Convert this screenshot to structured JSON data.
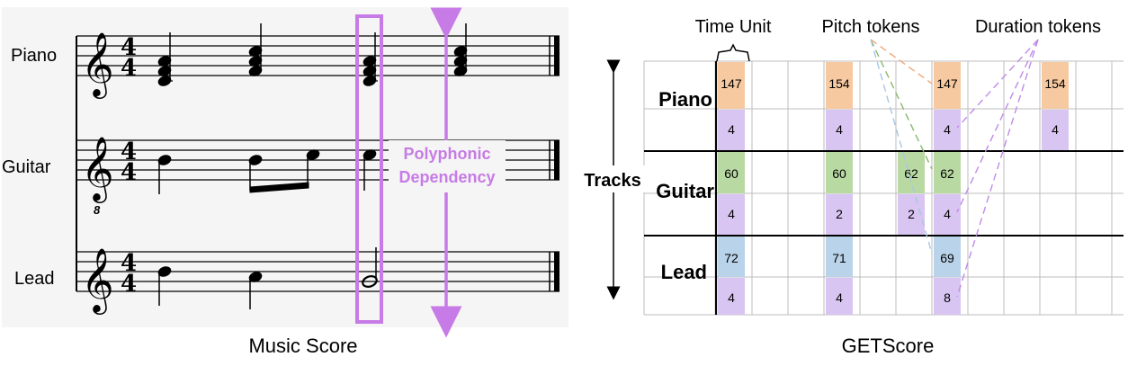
{
  "score": {
    "caption": "Music Score",
    "tracks": [
      "Piano",
      "Guitar",
      "Lead"
    ],
    "time_sig": [
      "4",
      "4"
    ],
    "guitar_clef_mark": "8",
    "annotation": {
      "line1": "Polyphonic",
      "line2": "Dependency",
      "color": "#c77be6"
    }
  },
  "getscore": {
    "caption": "GETScore",
    "tracks_label": "Tracks",
    "track_labels": [
      "Piano",
      "Guitar",
      "Lead"
    ],
    "top_labels": {
      "time_unit": "Time Unit",
      "pitch": "Pitch tokens",
      "duration": "Duration tokens"
    },
    "colors": {
      "piano": "#f7c9a1",
      "guitar": "#b9d9a3",
      "lead": "#b9d3ea",
      "duration": "#d9c5f2"
    },
    "columns": [
      {
        "piano": [
          "147",
          "4"
        ],
        "guitar": [
          "60",
          "4"
        ],
        "lead": [
          "72",
          "4"
        ]
      },
      {
        "piano": [
          "154",
          "4"
        ],
        "guitar": [
          "60",
          "2"
        ],
        "lead": [
          "71",
          "4"
        ]
      },
      {
        "guitar": [
          "62",
          "2"
        ]
      },
      {
        "piano": [
          "147",
          "4"
        ],
        "guitar": [
          "62",
          "4"
        ],
        "lead": [
          "69",
          "8"
        ]
      },
      {
        "piano": [
          "154",
          "4"
        ]
      }
    ]
  }
}
